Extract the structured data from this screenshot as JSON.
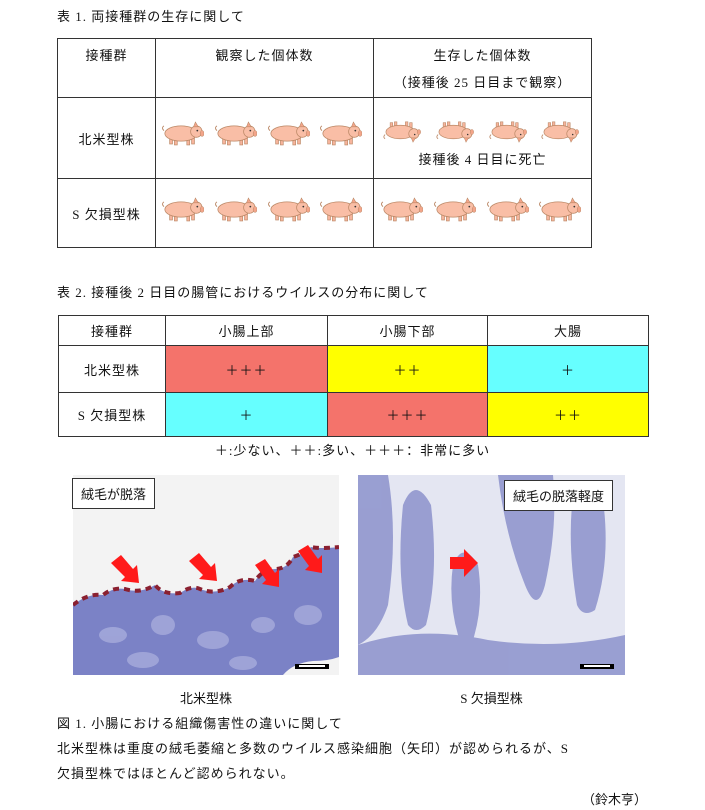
{
  "table1": {
    "caption": "表 1. 両接種群の生存に関して",
    "header": [
      "接種群",
      "観察した個体数",
      "生存した個体数",
      "（接種後 25 日目まで観察）"
    ],
    "rows": [
      {
        "label": "北米型株",
        "note": "接種後 4 日目に死亡"
      },
      {
        "label": "S 欠損型株"
      }
    ]
  },
  "table2": {
    "caption": "表 2. 接種後 2 日目の腸管におけるウイルスの分布に関して",
    "header": [
      "接種群",
      "小腸上部",
      "小腸下部",
      "大腸"
    ],
    "rows": [
      [
        "北米型株",
        "＋＋＋",
        "＋＋",
        "＋"
      ],
      [
        "S 欠損型株",
        "＋",
        "＋＋＋",
        "＋＋"
      ]
    ],
    "legend": "＋:少ない、＋＋:多い、＋＋＋：非常に多い"
  },
  "figure": {
    "panels": [
      {
        "label": "絨毛が脱落",
        "caption": "北米型株"
      },
      {
        "label": "絨毛の脱落軽度",
        "caption": "S 欠損型株"
      }
    ],
    "caption": "図 1. 小腸における組織傷害性の違いに関して",
    "body": [
      "北米型株は重度の絨毛萎縮と多数のウイルス感染細胞（矢印）が認められるが、S",
      "欠損型株ではほとんど認められない。"
    ],
    "author": "（鈴木亨）"
  }
}
